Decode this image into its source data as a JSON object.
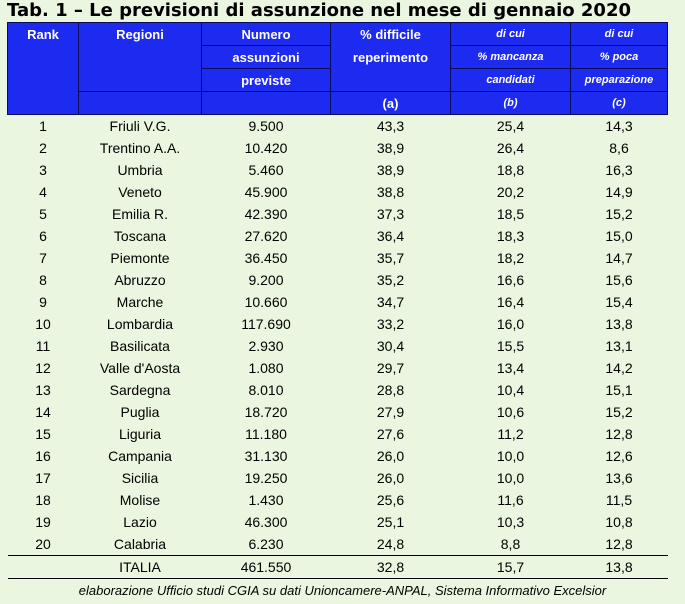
{
  "title": "Tab. 1 – Le previsioni di assunzione nel mese di gennaio 2020",
  "headers": {
    "rank": "Rank",
    "regioni": "Regioni",
    "numero": [
      "Numero",
      "assunzioni",
      "previste"
    ],
    "difficile": [
      "% difficile",
      "reperimento",
      "(a)"
    ],
    "mancanza": [
      "di cui",
      "% mancanza",
      "candidati",
      "(b)"
    ],
    "preparazione": [
      "di cui",
      "% poca",
      "preparazione",
      "(c)"
    ]
  },
  "rows": [
    [
      "1",
      "Friuli V.G.",
      "9.500",
      "43,3",
      "25,4",
      "14,3"
    ],
    [
      "2",
      "Trentino A.A.",
      "10.420",
      "38,9",
      "26,4",
      "8,6"
    ],
    [
      "3",
      "Umbria",
      "5.460",
      "38,9",
      "18,8",
      "16,3"
    ],
    [
      "4",
      "Veneto",
      "45.900",
      "38,8",
      "20,2",
      "14,9"
    ],
    [
      "5",
      "Emilia R.",
      "42.390",
      "37,3",
      "18,5",
      "15,2"
    ],
    [
      "6",
      "Toscana",
      "27.620",
      "36,4",
      "18,3",
      "15,0"
    ],
    [
      "7",
      "Piemonte",
      "36.450",
      "35,7",
      "18,2",
      "14,7"
    ],
    [
      "8",
      "Abruzzo",
      "9.200",
      "35,2",
      "16,6",
      "15,6"
    ],
    [
      "9",
      "Marche",
      "10.660",
      "34,7",
      "16,4",
      "15,4"
    ],
    [
      "10",
      "Lombardia",
      "117.690",
      "33,2",
      "16,0",
      "13,8"
    ],
    [
      "11",
      "Basilicata",
      "2.930",
      "30,4",
      "15,5",
      "13,1"
    ],
    [
      "12",
      "Valle d'Aosta",
      "1.080",
      "29,7",
      "13,4",
      "14,2"
    ],
    [
      "13",
      "Sardegna",
      "8.010",
      "28,8",
      "10,4",
      "15,1"
    ],
    [
      "14",
      "Puglia",
      "18.720",
      "27,9",
      "10,6",
      "15,2"
    ],
    [
      "15",
      "Liguria",
      "11.180",
      "27,6",
      "11,2",
      "12,8"
    ],
    [
      "16",
      "Campania",
      "31.130",
      "26,0",
      "10,0",
      "12,6"
    ],
    [
      "17",
      "Sicilia",
      "19.250",
      "26,0",
      "10,0",
      "13,6"
    ],
    [
      "18",
      "Molise",
      "1.430",
      "25,6",
      "11,6",
      "11,5"
    ],
    [
      "19",
      "Lazio",
      "46.300",
      "25,1",
      "10,3",
      "10,8"
    ],
    [
      "20",
      "Calabria",
      "6.230",
      "24,8",
      "8,8",
      "12,8"
    ]
  ],
  "total": [
    "",
    "ITALIA",
    "461.550",
    "32,8",
    "15,7",
    "13,8"
  ],
  "source": "elaborazione Ufficio studi CGIA su dati Unioncamere-ANPAL, Sistema Informativo Excelsior",
  "colors": {
    "header_bg": "#1d2af0",
    "page_bg": "#eaf6df"
  }
}
